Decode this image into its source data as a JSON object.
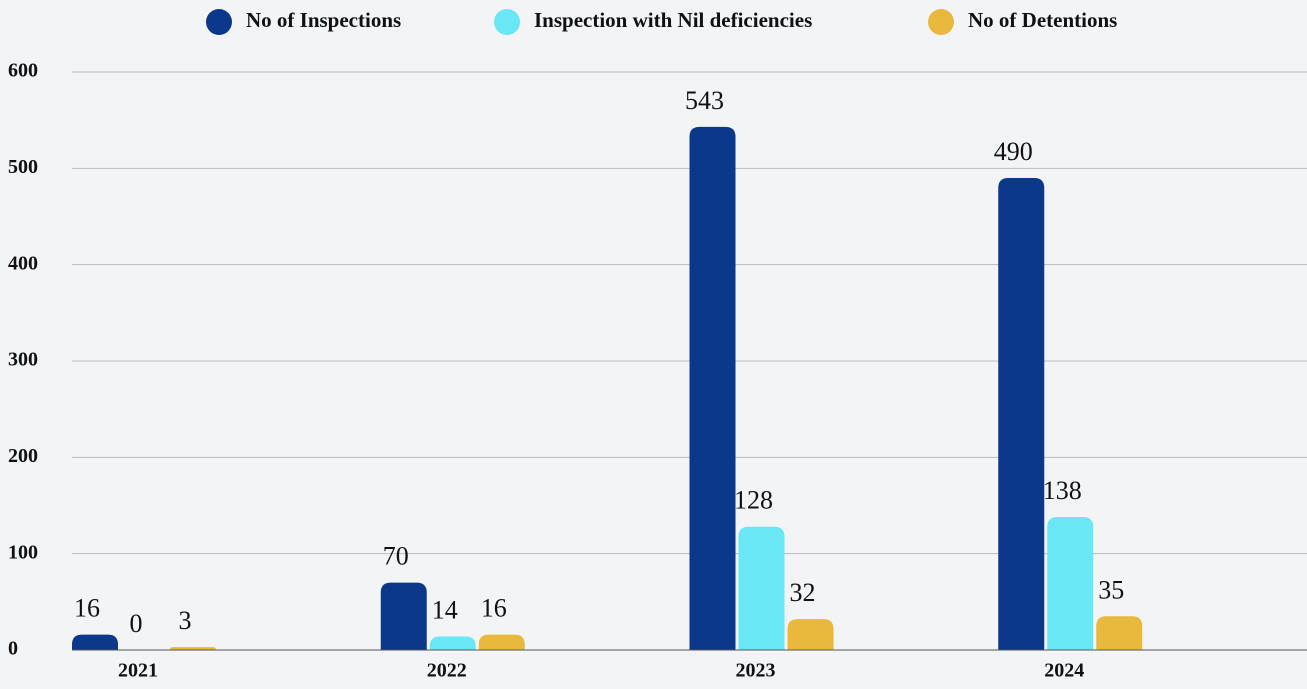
{
  "chart_data": {
    "type": "bar",
    "categories": [
      "2021",
      "2022",
      "2023",
      "2024"
    ],
    "series": [
      {
        "name": "No of Inspections",
        "color": "#0b388a",
        "values": [
          16,
          70,
          543,
          490
        ]
      },
      {
        "name": "Inspection with Nil deficiencies",
        "color": "#6ae7f5",
        "values": [
          0,
          14,
          128,
          138
        ]
      },
      {
        "name": "No of Detentions",
        "color": "#e8b93d",
        "values": [
          3,
          16,
          32,
          35
        ]
      }
    ],
    "ylim": [
      0,
      600
    ],
    "yticks": [
      0,
      100,
      200,
      300,
      400,
      500,
      600
    ],
    "grid": true
  }
}
